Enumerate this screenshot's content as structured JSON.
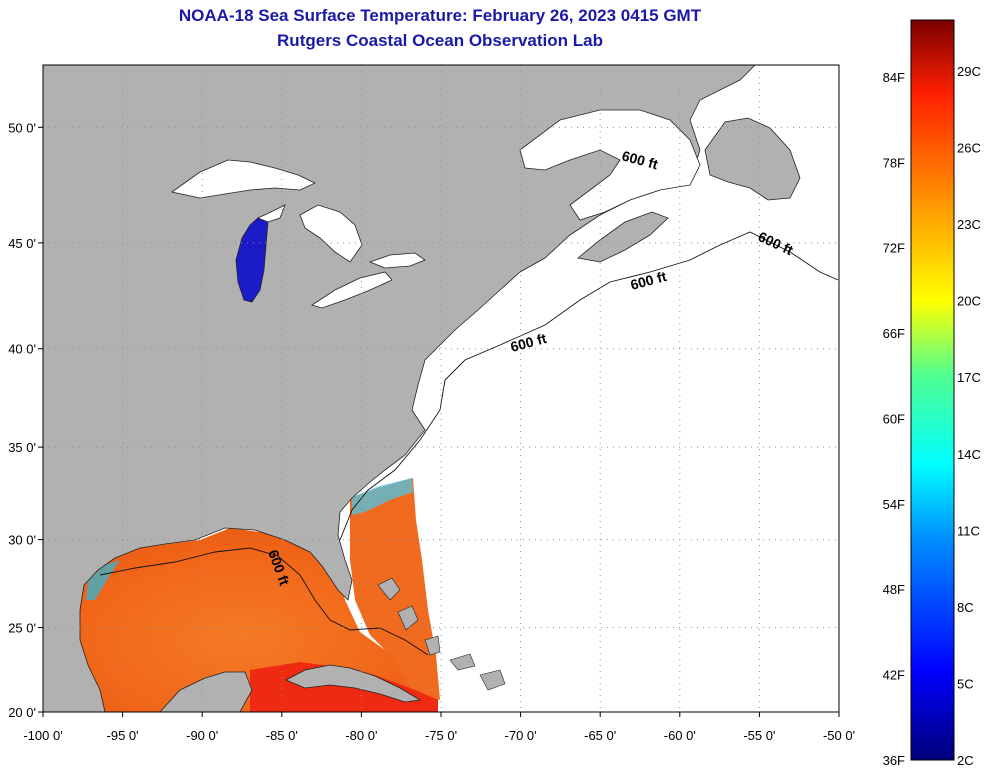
{
  "header": {
    "title": "NOAA-18 Sea Surface Temperature:  February 26, 2023 0415 GMT",
    "subtitle": "Rutgers Coastal Ocean Observation Lab"
  },
  "map": {
    "lon_range": [
      -100,
      -50
    ],
    "lat_range": [
      20,
      52.5
    ],
    "lon_ticks": [
      "-100 0'",
      "-95 0'",
      "-90 0'",
      "-85 0'",
      "-80 0'",
      "-75 0'",
      "-70 0'",
      "-65 0'",
      "-60 0'",
      "-55 0'",
      "-50 0'"
    ],
    "lat_ticks": [
      "50 0'",
      "45 0'",
      "40 0'",
      "35 0'",
      "30 0'",
      "25 0'",
      "20 0'"
    ],
    "contour_labels": [
      "600 ft",
      "600 ft",
      "600 ft",
      "600 ft",
      "600 ft"
    ],
    "colors": {
      "land": "#b1b1b1",
      "no_data": "#ffffff",
      "gulf_warm": "#f36a1c",
      "caribbean_hot": "#ee2a12",
      "lake_michigan": "#1b1bc8",
      "graticule": "#909090"
    }
  },
  "colorbar": {
    "range_f": [
      36,
      88
    ],
    "range_c": [
      2,
      31
    ],
    "fahrenheit_labels": [
      "84F",
      "78F",
      "72F",
      "66F",
      "60F",
      "54F",
      "48F",
      "42F",
      "36F"
    ],
    "celsius_labels": [
      "29C",
      "26C",
      "23C",
      "20C",
      "17C",
      "14C",
      "11C",
      "8C",
      "5C",
      "2C"
    ],
    "gradient": [
      "#00007a",
      "#0000ff",
      "#0090ff",
      "#00ffff",
      "#50ff90",
      "#ffff00",
      "#ff9000",
      "#ff2000",
      "#7a0000"
    ]
  }
}
